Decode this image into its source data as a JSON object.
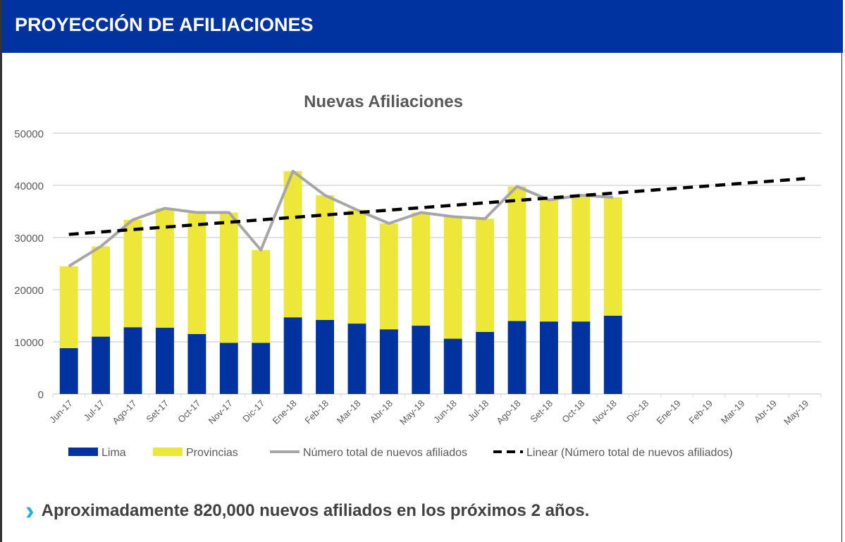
{
  "header": {
    "title": "PROYECCIÓN DE AFILIACIONES"
  },
  "footer": {
    "icon": "chevron-right-icon",
    "text": "Aproximadamente 820,000 nuevos afiliados en los próximos 2 años."
  },
  "chart_data": {
    "type": "bar",
    "stacked": true,
    "title": "Nuevas Afiliaciones",
    "xlabel": "",
    "ylabel": "",
    "ylim": [
      0,
      50000
    ],
    "yticks": [
      0,
      10000,
      20000,
      30000,
      40000,
      50000
    ],
    "grid": true,
    "legend_position": "bottom",
    "categories": [
      "Jun-17",
      "Jul-17",
      "Ago-17",
      "Set-17",
      "Oct-17",
      "Nov-17",
      "Dic-17",
      "Ene-18",
      "Feb-18",
      "Mar-18",
      "Abr-18",
      "May-18",
      "Jun-18",
      "Jul-18",
      "Ago-18",
      "Set-18",
      "Oct-18",
      "Nov-18",
      "Dic-18",
      "Ene-19",
      "Feb-19",
      "Mar-19",
      "Abr-19",
      "May-19"
    ],
    "series": [
      {
        "name": "Lima",
        "type": "bar",
        "color": "#0033a0",
        "values": [
          8800,
          11000,
          12800,
          12700,
          11500,
          9800,
          9800,
          14700,
          14200,
          13500,
          12400,
          13100,
          10600,
          11900,
          14000,
          13900,
          13900,
          15000,
          null,
          null,
          null,
          null,
          null,
          null
        ]
      },
      {
        "name": "Provincias",
        "type": "bar",
        "color": "#ede73a",
        "values": [
          15700,
          17300,
          20600,
          22900,
          23300,
          25000,
          17800,
          28000,
          23900,
          21800,
          20300,
          21700,
          23400,
          21700,
          25800,
          23300,
          24200,
          22700,
          null,
          null,
          null,
          null,
          null,
          null
        ]
      },
      {
        "name": "Número total de nuevos afiliados",
        "type": "line",
        "color": "#a6a6a6",
        "values": [
          24500,
          28300,
          33400,
          35600,
          34800,
          34800,
          27600,
          42700,
          38100,
          35300,
          32700,
          34800,
          34000,
          33600,
          39800,
          37200,
          38100,
          37700,
          null,
          null,
          null,
          null,
          null,
          null
        ]
      },
      {
        "name": "Linear (Número total de nuevos afiliados)",
        "type": "line",
        "dashed": true,
        "color": "#000000",
        "start": 30600,
        "end": 41300
      }
    ]
  }
}
